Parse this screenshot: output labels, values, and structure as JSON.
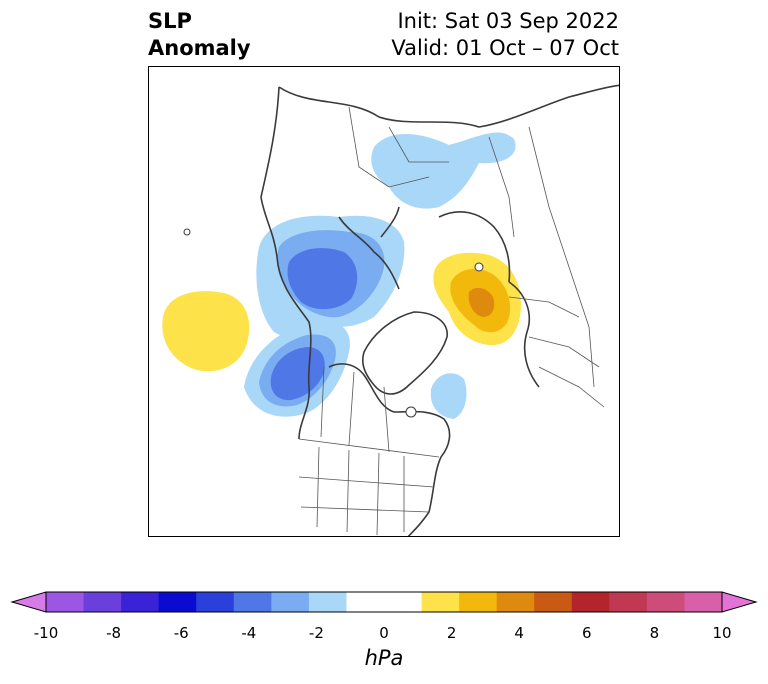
{
  "title": {
    "left_line1": "SLP",
    "left_line2": "Anomaly",
    "right_line1": "Init: Sat 03 Sep 2022",
    "right_line2": "Valid: 01 Oct – 07 Oct"
  },
  "colorbar": {
    "label": "hPa",
    "ticks": [
      "-10",
      "-8",
      "-6",
      "-4",
      "-2",
      "0",
      "2",
      "4",
      "6",
      "8",
      "10"
    ],
    "colors": [
      "#d77be9",
      "#9b57e3",
      "#6a3fdc",
      "#3a22d6",
      "#0a0ad0",
      "#2a40da",
      "#4f77e6",
      "#79acf0",
      "#a9d7f8",
      "#ffffff",
      "#ffffff",
      "#fde24a",
      "#f2b90c",
      "#dd8a0e",
      "#c95a14",
      "#b3252a",
      "#c13852",
      "#cd4c7a",
      "#d860a8",
      "#e473d7"
    ],
    "extend": "both"
  },
  "map": {
    "region": "North Pole / North Atlantic / North America",
    "projection": "polar stereographic",
    "anomaly_colors": {
      "neg_light": "#a9d7f8",
      "neg_med": "#79acf0",
      "neg_dark": "#4f77e6",
      "pos_light": "#fde24a",
      "pos_med": "#f2b90c",
      "pos_dark": "#dd8a0e"
    }
  }
}
